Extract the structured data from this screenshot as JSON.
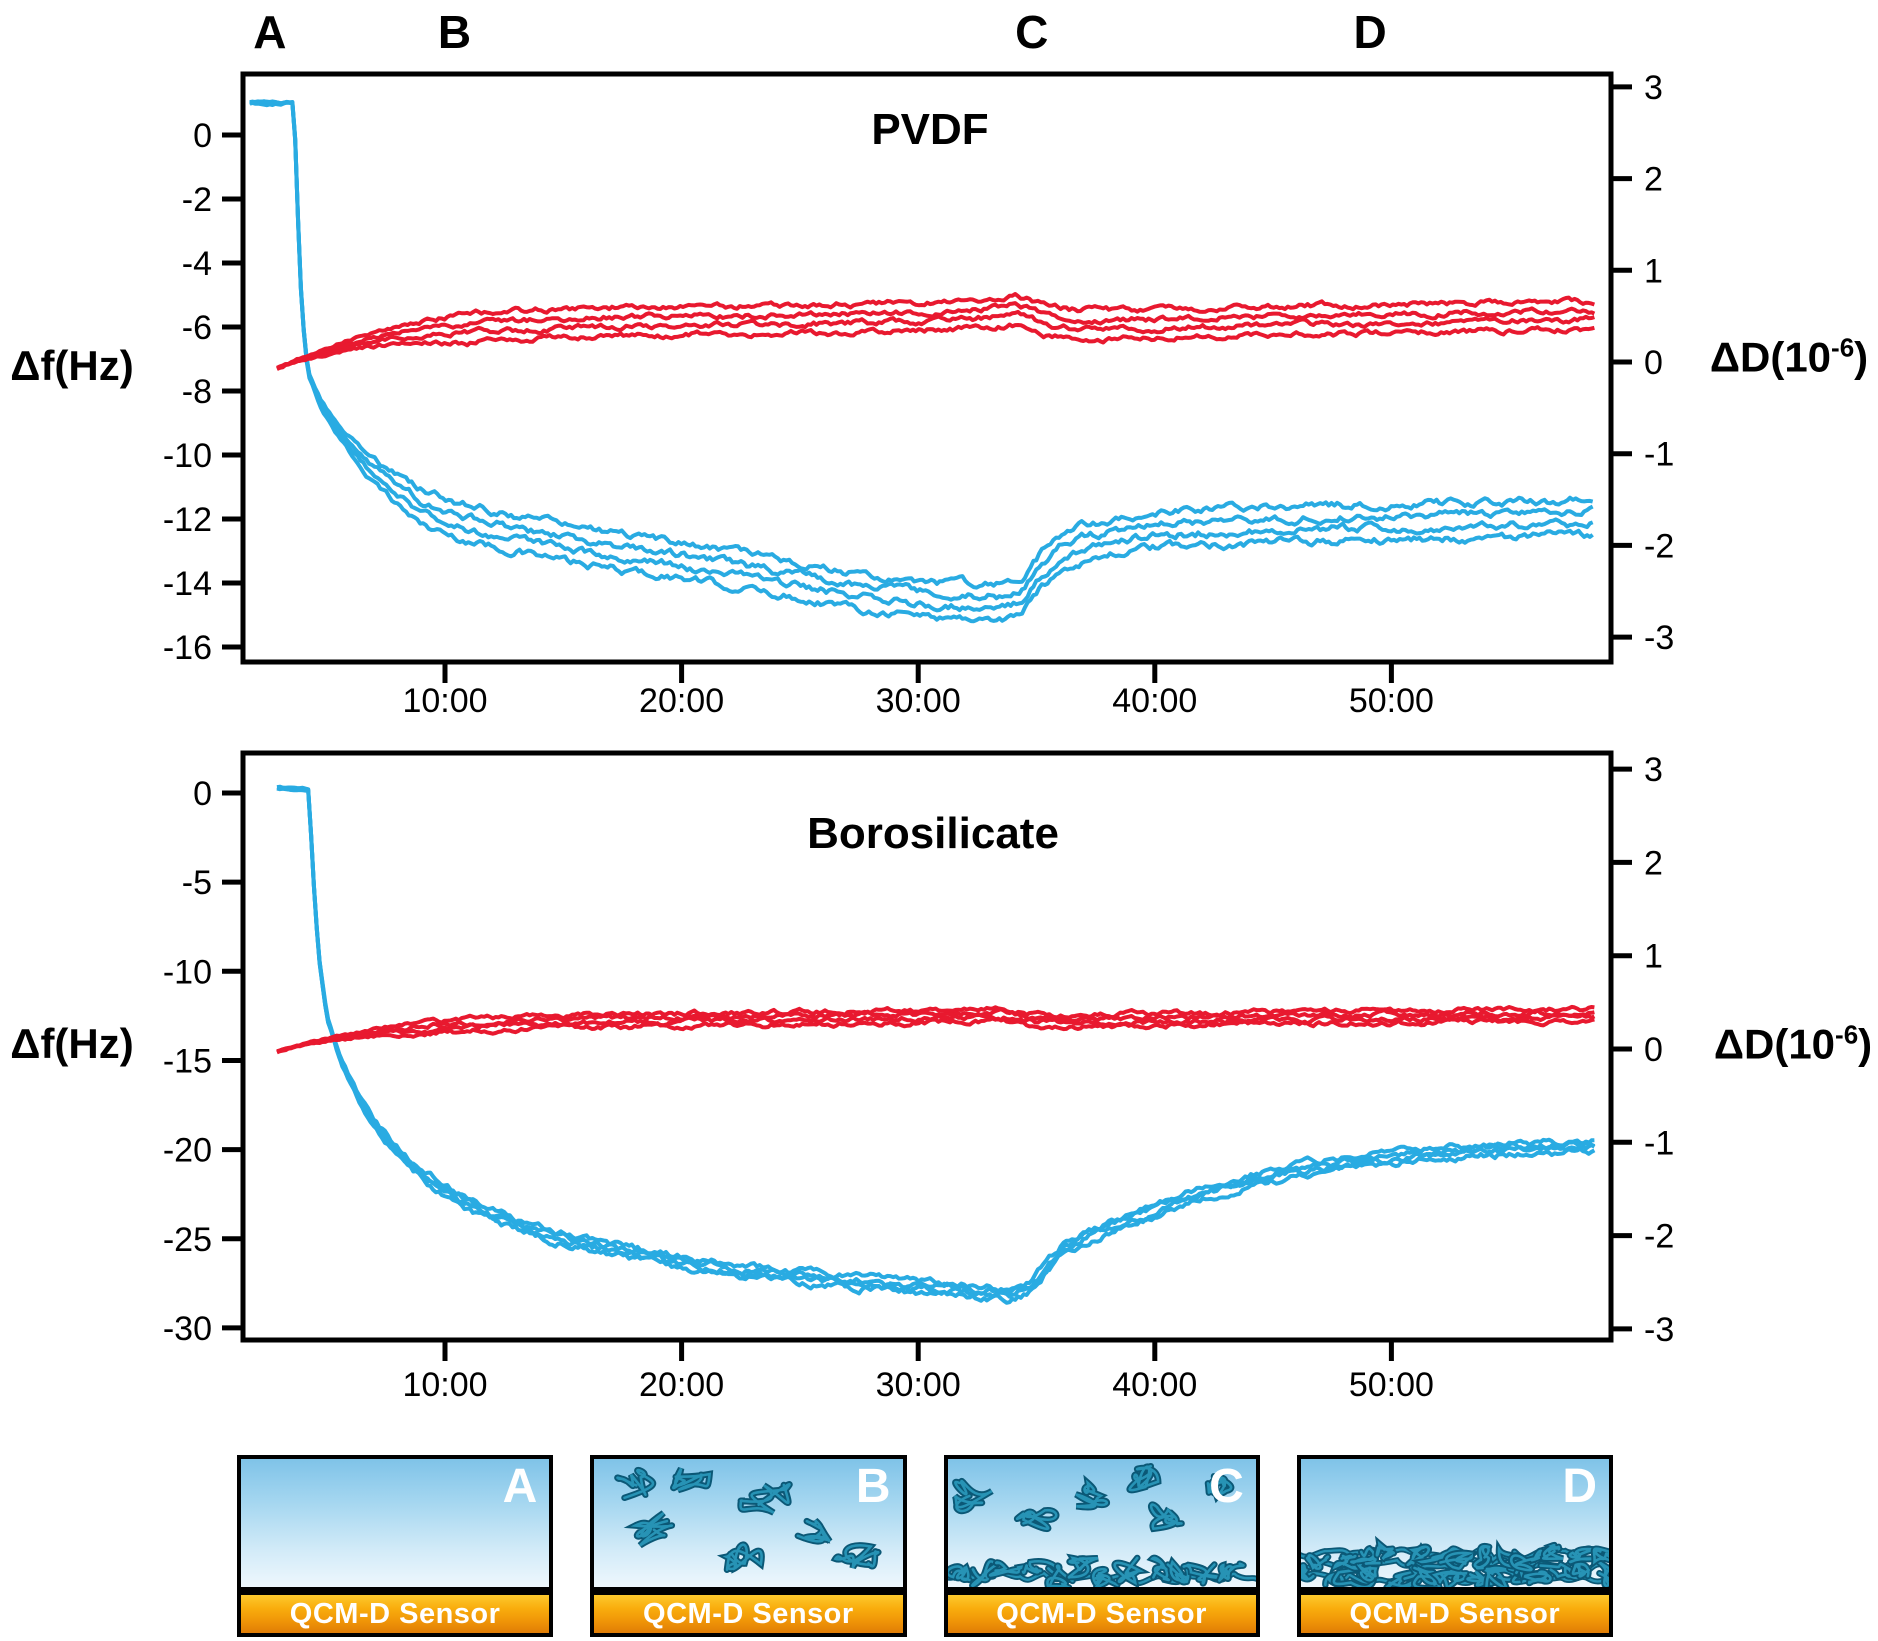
{
  "colors": {
    "frequency_curve": "#29abe2",
    "dissipation_curve": "#e8192f",
    "axis": "#000000",
    "text": "#000000",
    "molecule_outline": "#0b5876",
    "molecule_highlight": "#2793b5",
    "solution_top": "#7fc3e8",
    "solution_bottom": "#eef7fd",
    "sensor_top": "#fdc92d",
    "sensor_bottom": "#e07d06",
    "panel_label": "#ffffff"
  },
  "stages": [
    {
      "label": "A",
      "t": 2.6
    },
    {
      "label": "B",
      "t": 10.4
    },
    {
      "label": "C",
      "t": 34.8
    },
    {
      "label": "D",
      "t": 49.1
    }
  ],
  "chart_data": [
    {
      "type": "line",
      "id": "pvdf",
      "title": "PVDF",
      "x_axis": {
        "range": [
          1.4,
          59.3
        ],
        "tick_values": [
          10,
          20,
          30,
          40,
          50
        ],
        "tick_labels": [
          "10:00",
          "20:00",
          "30:00",
          "40:00",
          "50:00"
        ]
      },
      "left_axis": {
        "label": "Δf(Hz)",
        "units": "Hz",
        "range": [
          1.9,
          -16.5
        ],
        "tick_values": [
          0,
          -2,
          -4,
          -6,
          -8,
          -10,
          -12,
          -14,
          -16
        ],
        "tick_labels": [
          "0",
          "-2",
          "-4",
          "-6",
          "-8",
          "-10",
          "-12",
          "-14",
          "-16"
        ]
      },
      "right_axis": {
        "label_main": "ΔD(10",
        "label_sup": "-6",
        "label_end": ")",
        "range": [
          3.14,
          -3.27
        ],
        "tick_values": [
          3,
          2,
          1,
          0,
          -1,
          -2,
          -3
        ],
        "tick_labels": [
          "3",
          "2",
          "1",
          "0",
          "-1",
          "-2",
          "-3"
        ]
      },
      "series": [
        {
          "name": "frequency_shift",
          "axis": "left",
          "color": "#29abe2",
          "replicates": 4,
          "replicate_offsets": [
            -0.55,
            -0.18,
            0.18,
            0.55
          ],
          "spread_ramp": [
            3.8,
            9.0
          ],
          "noise": 0.16,
          "keypoints": [
            [
              1.75,
              1.0
            ],
            [
              3.62,
              1.0
            ],
            [
              3.75,
              -2.0
            ],
            [
              3.95,
              -5.5
            ],
            [
              4.2,
              -7.4
            ],
            [
              4.7,
              -8.3
            ],
            [
              5.4,
              -9.2
            ],
            [
              6.2,
              -9.9
            ],
            [
              7.0,
              -10.5
            ],
            [
              8.0,
              -11.1
            ],
            [
              9.0,
              -11.6
            ],
            [
              10.3,
              -12.0
            ],
            [
              12,
              -12.3
            ],
            [
              14,
              -12.6
            ],
            [
              16,
              -12.9
            ],
            [
              18,
              -13.1
            ],
            [
              20,
              -13.3
            ],
            [
              22,
              -13.55
            ],
            [
              24,
              -13.8
            ],
            [
              26,
              -14.05
            ],
            [
              28,
              -14.3
            ],
            [
              30,
              -14.45
            ],
            [
              32,
              -14.55
            ],
            [
              33.6,
              -14.6
            ],
            [
              34.4,
              -14.35
            ],
            [
              35.2,
              -13.6
            ],
            [
              36,
              -13.05
            ],
            [
              37,
              -12.75
            ],
            [
              38.5,
              -12.5
            ],
            [
              40,
              -12.35
            ],
            [
              42,
              -12.25
            ],
            [
              44,
              -12.2
            ],
            [
              47,
              -12.15
            ],
            [
              50,
              -12.1
            ],
            [
              53,
              -12.05
            ],
            [
              56,
              -12.0
            ],
            [
              58.6,
              -11.95
            ]
          ]
        },
        {
          "name": "dissipation_shift",
          "axis": "right",
          "color": "#e8192f",
          "replicates": 4,
          "replicate_offsets": [
            -0.155,
            -0.05,
            0.05,
            0.155
          ],
          "spread_ramp": [
            3.2,
            11.0
          ],
          "noise": 0.04,
          "keypoints": [
            [
              2.9,
              -0.07
            ],
            [
              3.6,
              0.0
            ],
            [
              4.5,
              0.08
            ],
            [
              5.5,
              0.16
            ],
            [
              6.5,
              0.22
            ],
            [
              8,
              0.29
            ],
            [
              9.5,
              0.34
            ],
            [
              11,
              0.37
            ],
            [
              13,
              0.4
            ],
            [
              15,
              0.42
            ],
            [
              17,
              0.44
            ],
            [
              20,
              0.45
            ],
            [
              23,
              0.46
            ],
            [
              26,
              0.47
            ],
            [
              29,
              0.49
            ],
            [
              31.5,
              0.51
            ],
            [
              33,
              0.53
            ],
            [
              34.2,
              0.57
            ],
            [
              35.3,
              0.47
            ],
            [
              36.5,
              0.42
            ],
            [
              38,
              0.41
            ],
            [
              40,
              0.42
            ],
            [
              43,
              0.44
            ],
            [
              46,
              0.46
            ],
            [
              49,
              0.47
            ],
            [
              52,
              0.48
            ],
            [
              55,
              0.5
            ],
            [
              58.6,
              0.51
            ]
          ]
        }
      ]
    },
    {
      "type": "line",
      "id": "borosilicate",
      "title": "Borosilicate",
      "x_axis": {
        "range": [
          1.4,
          59.3
        ],
        "tick_values": [
          10,
          20,
          30,
          40,
          50
        ],
        "tick_labels": [
          "10:00",
          "20:00",
          "30:00",
          "40:00",
          "50:00"
        ]
      },
      "left_axis": {
        "label": "Δf(Hz)",
        "units": "Hz",
        "range": [
          2.2,
          -30.7
        ],
        "tick_values": [
          0,
          -5,
          -10,
          -15,
          -20,
          -25,
          -30
        ],
        "tick_labels": [
          "0",
          "-5",
          "-10",
          "-15",
          "-20",
          "-25",
          "-30"
        ]
      },
      "right_axis": {
        "label_main": "ΔD(10",
        "label_sup": "-6",
        "label_end": ")",
        "range": [
          3.18,
          -3.13
        ],
        "tick_values": [
          3,
          2,
          1,
          0,
          -1,
          -2,
          -3
        ],
        "tick_labels": [
          "3",
          "2",
          "1",
          "0",
          "-1",
          "-2",
          "-3"
        ]
      },
      "series": [
        {
          "name": "frequency_shift",
          "axis": "left",
          "color": "#29abe2",
          "replicates": 4,
          "replicate_offsets": [
            -0.3,
            -0.1,
            0.1,
            0.3
          ],
          "spread_ramp": [
            4.2,
            8.0
          ],
          "noise": 0.25,
          "keypoints": [
            [
              2.9,
              0.3
            ],
            [
              4.25,
              0.2
            ],
            [
              4.4,
              -4.0
            ],
            [
              4.65,
              -9.0
            ],
            [
              5.0,
              -12.5
            ],
            [
              5.6,
              -15.0
            ],
            [
              6.3,
              -17.0
            ],
            [
              7.1,
              -18.7
            ],
            [
              8.0,
              -20.2
            ],
            [
              9.0,
              -21.4
            ],
            [
              10.2,
              -22.5
            ],
            [
              11.5,
              -23.4
            ],
            [
              13,
              -24.2
            ],
            [
              15,
              -25.0
            ],
            [
              17,
              -25.6
            ],
            [
              19,
              -26.1
            ],
            [
              21,
              -26.5
            ],
            [
              23,
              -26.85
            ],
            [
              25,
              -27.15
            ],
            [
              27,
              -27.4
            ],
            [
              29,
              -27.6
            ],
            [
              31,
              -27.8
            ],
            [
              32.8,
              -28.0
            ],
            [
              33.9,
              -28.1
            ],
            [
              34.7,
              -27.7
            ],
            [
              35.4,
              -26.6
            ],
            [
              36.2,
              -25.5
            ],
            [
              37.2,
              -24.8
            ],
            [
              38.5,
              -24.2
            ],
            [
              40,
              -23.4
            ],
            [
              41.5,
              -22.7
            ],
            [
              43,
              -22.1
            ],
            [
              44.5,
              -21.6
            ],
            [
              46,
              -21.2
            ],
            [
              47.5,
              -20.9
            ],
            [
              49,
              -20.6
            ],
            [
              50.5,
              -20.4
            ],
            [
              52,
              -20.2
            ],
            [
              54,
              -20.0
            ],
            [
              56,
              -19.9
            ],
            [
              58.6,
              -19.8
            ]
          ]
        },
        {
          "name": "dissipation_shift",
          "axis": "right",
          "color": "#e8192f",
          "replicates": 4,
          "replicate_offsets": [
            -0.065,
            -0.022,
            0.022,
            0.065
          ],
          "spread_ramp": [
            3.2,
            10.0
          ],
          "noise": 0.035,
          "keypoints": [
            [
              2.9,
              -0.03
            ],
            [
              3.6,
              0.02
            ],
            [
              4.5,
              0.07
            ],
            [
              5.5,
              0.12
            ],
            [
              7,
              0.17
            ],
            [
              8.5,
              0.21
            ],
            [
              10,
              0.24
            ],
            [
              12,
              0.27
            ],
            [
              14,
              0.29
            ],
            [
              16,
              0.3
            ],
            [
              19,
              0.315
            ],
            [
              22,
              0.325
            ],
            [
              25,
              0.33
            ],
            [
              28,
              0.34
            ],
            [
              31,
              0.35
            ],
            [
              33.5,
              0.37
            ],
            [
              34.6,
              0.32
            ],
            [
              36,
              0.3
            ],
            [
              38,
              0.31
            ],
            [
              41,
              0.32
            ],
            [
              44,
              0.33
            ],
            [
              47,
              0.34
            ],
            [
              50,
              0.35
            ],
            [
              53,
              0.355
            ],
            [
              56,
              0.36
            ],
            [
              58.6,
              0.365
            ]
          ]
        }
      ]
    }
  ],
  "panels": [
    {
      "label": "A",
      "sensor_label": "QCM-D Sensor",
      "adsorbed": "none",
      "floating": []
    },
    {
      "label": "B",
      "sensor_label": "QCM-D Sensor",
      "adsorbed": "none",
      "floating": [
        [
          0.14,
          0.22,
          0.066
        ],
        [
          0.31,
          0.15,
          0.058
        ],
        [
          0.55,
          0.32,
          0.066
        ],
        [
          0.21,
          0.56,
          0.072
        ],
        [
          0.48,
          0.76,
          0.06
        ],
        [
          0.71,
          0.56,
          0.056
        ],
        [
          0.85,
          0.8,
          0.06
        ]
      ]
    },
    {
      "label": "C",
      "sensor_label": "QCM-D Sensor",
      "adsorbed": "monolayer",
      "floating": [
        [
          0.09,
          0.28,
          0.066
        ],
        [
          0.28,
          0.48,
          0.06
        ],
        [
          0.46,
          0.26,
          0.066
        ],
        [
          0.63,
          0.13,
          0.056
        ],
        [
          0.71,
          0.44,
          0.06
        ],
        [
          0.88,
          0.2,
          0.056
        ]
      ]
    },
    {
      "label": "D",
      "sensor_label": "QCM-D Sensor",
      "adsorbed": "dense",
      "floating": []
    }
  ]
}
